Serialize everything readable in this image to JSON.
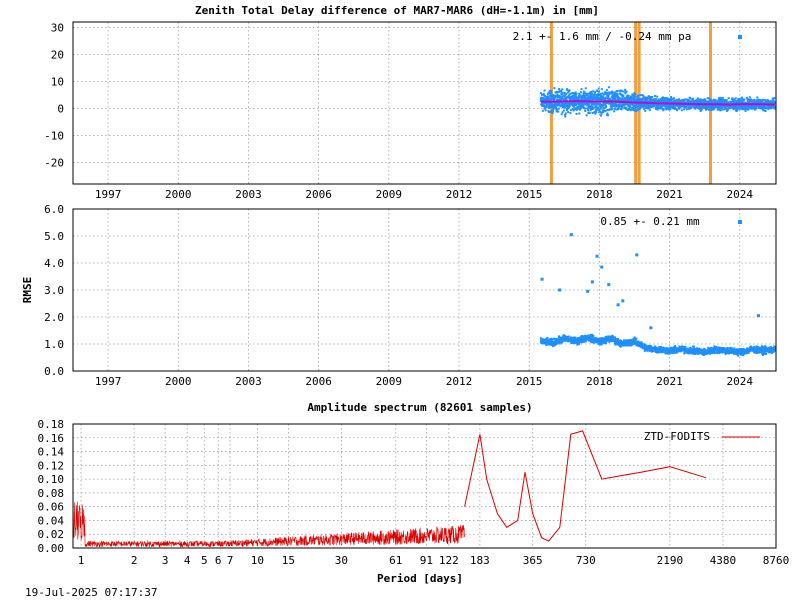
{
  "timestamp": "19-Jul-2025 07:17:37",
  "colors": {
    "points": "#1e90ff",
    "mean": "#cc00cc",
    "events": "#f0a040",
    "spectrum": "#dd0000"
  },
  "chart_data": [
    {
      "type": "scatter",
      "title": "Zenith Total Delay difference of MAR7-MAR6 (dH=-1.1m) in [mm]",
      "ylabel": "",
      "xlim": [
        1995.5,
        2025.55
      ],
      "ylim": [
        -28,
        32
      ],
      "yticks": [
        -20,
        -10,
        0,
        10,
        20,
        30
      ],
      "xticks": [
        1997,
        2000,
        2003,
        2006,
        2009,
        2012,
        2015,
        2018,
        2021,
        2024
      ],
      "grid": true,
      "annotation": "2.1 +-   1.6 mm / -0.24 mm pa",
      "event_lines_years": [
        2015.95,
        2019.55,
        2019.7,
        2022.75
      ],
      "series": [
        {
          "x": [
            2015.5,
            2016,
            2016.5,
            2017,
            2017.5,
            2018,
            2018.5,
            2019,
            2019.5,
            2020,
            2020.5,
            2021,
            2021.5,
            2022,
            2022.5,
            2023,
            2023.5,
            2024,
            2024.5,
            2025,
            2025.5
          ],
          "y": [
            2.5,
            2.5,
            2.6,
            2.7,
            2.6,
            2.5,
            2.6,
            2.4,
            2.2,
            2.1,
            1.9,
            1.8,
            1.7,
            1.6,
            1.5,
            1.5,
            1.4,
            1.5,
            1.6,
            1.5,
            1.4
          ],
          "spread": [
            5.5,
            5.5,
            6,
            5.5,
            6,
            6.5,
            6,
            5.5,
            5,
            3.5,
            3,
            3,
            2.8,
            2.8,
            3,
            3,
            3,
            3.2,
            3,
            3,
            3
          ]
        }
      ]
    },
    {
      "type": "scatter",
      "title": "",
      "ylabel": "RMSE",
      "xlim": [
        1995.5,
        2025.55
      ],
      "ylim": [
        0,
        6
      ],
      "yticks": [
        0.0,
        1.0,
        2.0,
        3.0,
        4.0,
        5.0,
        6.0
      ],
      "xticks": [
        1997,
        2000,
        2003,
        2006,
        2009,
        2012,
        2015,
        2018,
        2021,
        2024
      ],
      "grid": true,
      "annotation": "0.85 +-  0.21 mm",
      "series": [
        {
          "x": [
            2015.5,
            2016,
            2016.5,
            2017,
            2017.5,
            2018,
            2018.5,
            2019,
            2019.5,
            2020,
            2020.5,
            2021,
            2021.5,
            2022,
            2022.5,
            2023,
            2023.5,
            2024,
            2024.5,
            2025,
            2025.5
          ],
          "y": [
            1.1,
            1.05,
            1.2,
            1.1,
            1.25,
            1.1,
            1.2,
            1.0,
            1.1,
            0.85,
            0.8,
            0.75,
            0.8,
            0.75,
            0.7,
            0.8,
            0.75,
            0.7,
            0.8,
            0.75,
            0.8
          ],
          "outliers_x": [
            2015.55,
            2016.8,
            2017.5,
            2017.7,
            2017.9,
            2018.1,
            2018.4,
            2019.0,
            2019.6,
            2016.3,
            2018.8,
            2020.2,
            2024.8
          ],
          "outliers_y": [
            3.4,
            5.05,
            2.95,
            3.3,
            4.25,
            3.85,
            3.2,
            2.6,
            4.3,
            3.0,
            2.45,
            1.6,
            2.05
          ]
        }
      ]
    },
    {
      "type": "line",
      "title": "Amplitude spectrum (82601 samples)",
      "xlabel": "Period [days]",
      "xscale": "log",
      "xlim": [
        0.9,
        8760
      ],
      "ylim": [
        0,
        0.18
      ],
      "yticks": [
        0.0,
        0.02,
        0.04,
        0.06,
        0.08,
        0.1,
        0.12,
        0.14,
        0.16,
        0.18
      ],
      "xticks": [
        1,
        2,
        3,
        4,
        5,
        6,
        7,
        10,
        15,
        30,
        61,
        91,
        122,
        183,
        365,
        730,
        2190,
        4380,
        8760
      ],
      "grid": true,
      "legend_position": "top-right",
      "series": [
        {
          "name": "ZTD-FODITS",
          "x": [
            150,
            183,
            200,
            230,
            260,
            300,
            330,
            365,
            410,
            450,
            520,
            600,
            700,
            900,
            1500,
            2190,
            3500
          ],
          "y": [
            0.06,
            0.165,
            0.1,
            0.05,
            0.03,
            0.04,
            0.11,
            0.05,
            0.015,
            0.01,
            0.03,
            0.165,
            0.17,
            0.1,
            0.11,
            0.118,
            0.102
          ]
        }
      ]
    }
  ]
}
